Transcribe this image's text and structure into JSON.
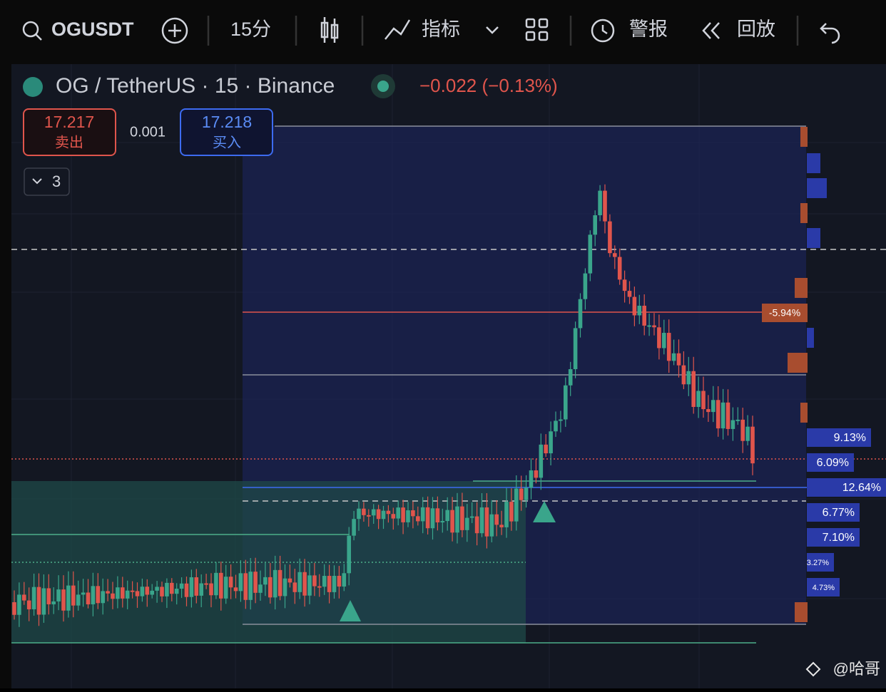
{
  "toolbar": {
    "symbol": "OGUSDT",
    "interval": "15分",
    "indicators": "指标",
    "alerts": "警报",
    "replay": "回放"
  },
  "header": {
    "title": "OG / TetherUS · 15 · Binance",
    "change": "−0.022 (−0.13%)"
  },
  "trade": {
    "sell_price": "17.217",
    "sell_label": "卖出",
    "spread": "0.001",
    "buy_price": "17.218",
    "buy_label": "买入"
  },
  "indicator_count": "3",
  "levels": {
    "red_label": "-5.94%",
    "blue_labels": [
      "9.13%",
      "6.09%",
      "12.64%",
      "6.77%",
      "7.10%",
      "3.27%",
      "4.73%"
    ]
  },
  "watermark": "@哈哥"
}
